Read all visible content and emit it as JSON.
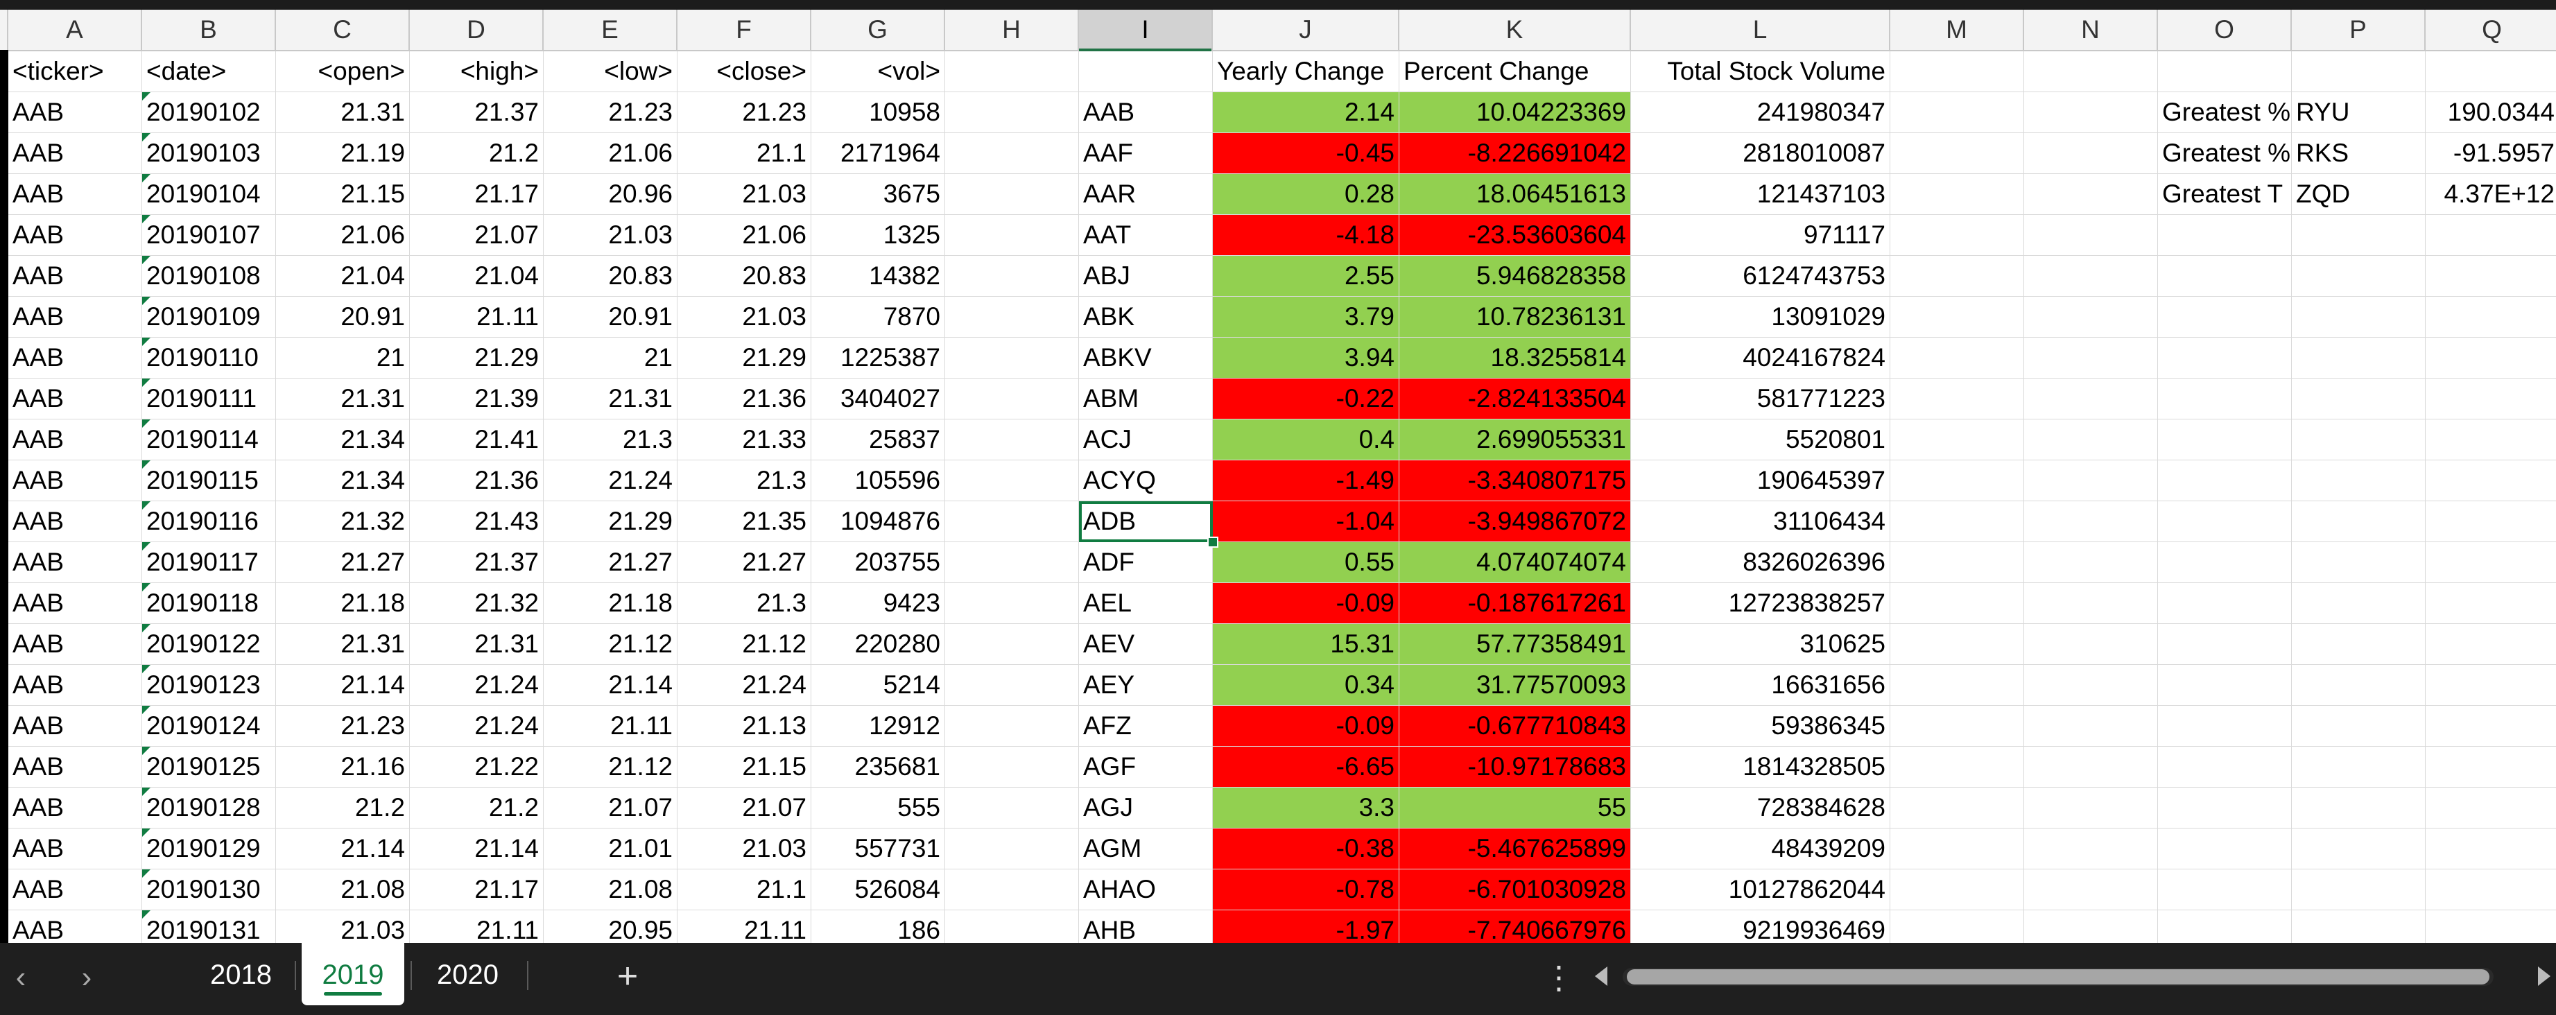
{
  "columns": [
    "A",
    "B",
    "C",
    "D",
    "E",
    "F",
    "G",
    "H",
    "I",
    "J",
    "K",
    "L",
    "M",
    "N",
    "O",
    "P",
    "Q"
  ],
  "selected_column": "I",
  "raw_headers": [
    "<ticker>",
    "<date>",
    "<open>",
    "<high>",
    "<low>",
    "<close>",
    "<vol>"
  ],
  "summary_headers": [
    "Yearly Change",
    "Percent Change",
    "Total Stock Volume"
  ],
  "greatest_labels": [
    "Greatest %",
    "Greatest %",
    "Greatest T"
  ],
  "greatest_tickers": [
    "RYU",
    "RKS",
    "ZQD"
  ],
  "greatest_values": [
    "190.0344",
    "-91.5957",
    "4.37E+12"
  ],
  "raw_rows": [
    [
      "AAB",
      "20190102",
      "21.31",
      "21.37",
      "21.23",
      "21.23",
      "10958"
    ],
    [
      "AAB",
      "20190103",
      "21.19",
      "21.2",
      "21.06",
      "21.1",
      "2171964"
    ],
    [
      "AAB",
      "20190104",
      "21.15",
      "21.17",
      "20.96",
      "21.03",
      "3675"
    ],
    [
      "AAB",
      "20190107",
      "21.06",
      "21.07",
      "21.03",
      "21.06",
      "1325"
    ],
    [
      "AAB",
      "20190108",
      "21.04",
      "21.04",
      "20.83",
      "20.83",
      "14382"
    ],
    [
      "AAB",
      "20190109",
      "20.91",
      "21.11",
      "20.91",
      "21.03",
      "7870"
    ],
    [
      "AAB",
      "20190110",
      "21",
      "21.29",
      "21",
      "21.29",
      "1225387"
    ],
    [
      "AAB",
      "20190111",
      "21.31",
      "21.39",
      "21.31",
      "21.36",
      "3404027"
    ],
    [
      "AAB",
      "20190114",
      "21.34",
      "21.41",
      "21.3",
      "21.33",
      "25837"
    ],
    [
      "AAB",
      "20190115",
      "21.34",
      "21.36",
      "21.24",
      "21.3",
      "105596"
    ],
    [
      "AAB",
      "20190116",
      "21.32",
      "21.43",
      "21.29",
      "21.35",
      "1094876"
    ],
    [
      "AAB",
      "20190117",
      "21.27",
      "21.37",
      "21.27",
      "21.27",
      "203755"
    ],
    [
      "AAB",
      "20190118",
      "21.18",
      "21.32",
      "21.18",
      "21.3",
      "9423"
    ],
    [
      "AAB",
      "20190122",
      "21.31",
      "21.31",
      "21.12",
      "21.12",
      "220280"
    ],
    [
      "AAB",
      "20190123",
      "21.14",
      "21.24",
      "21.14",
      "21.24",
      "5214"
    ],
    [
      "AAB",
      "20190124",
      "21.23",
      "21.24",
      "21.11",
      "21.13",
      "12912"
    ],
    [
      "AAB",
      "20190125",
      "21.16",
      "21.22",
      "21.12",
      "21.15",
      "235681"
    ],
    [
      "AAB",
      "20190128",
      "21.2",
      "21.2",
      "21.07",
      "21.07",
      "555"
    ],
    [
      "AAB",
      "20190129",
      "21.14",
      "21.14",
      "21.01",
      "21.03",
      "557731"
    ],
    [
      "AAB",
      "20190130",
      "21.08",
      "21.17",
      "21.08",
      "21.1",
      "526084"
    ],
    [
      "AAB",
      "20190131",
      "21.03",
      "21.11",
      "20.95",
      "21.11",
      "186"
    ]
  ],
  "summary_rows": [
    [
      "AAB",
      "2.14",
      "10.04223369",
      "241980347"
    ],
    [
      "AAF",
      "-0.45",
      "-8.226691042",
      "2818010087"
    ],
    [
      "AAR",
      "0.28",
      "18.06451613",
      "121437103"
    ],
    [
      "AAT",
      "-4.18",
      "-23.53603604",
      "971117"
    ],
    [
      "ABJ",
      "2.55",
      "5.946828358",
      "6124743753"
    ],
    [
      "ABK",
      "3.79",
      "10.78236131",
      "13091029"
    ],
    [
      "ABKV",
      "3.94",
      "18.3255814",
      "4024167824"
    ],
    [
      "ABM",
      "-0.22",
      "-2.824133504",
      "581771223"
    ],
    [
      "ACJ",
      "0.4",
      "2.699055331",
      "5520801"
    ],
    [
      "ACYQ",
      "-1.49",
      "-3.340807175",
      "190645397"
    ],
    [
      "ADB",
      "-1.04",
      "-3.949867072",
      "31106434"
    ],
    [
      "ADF",
      "0.55",
      "4.074074074",
      "8326026396"
    ],
    [
      "AEL",
      "-0.09",
      "-0.187617261",
      "12723838257"
    ],
    [
      "AEV",
      "15.31",
      "57.77358491",
      "310625"
    ],
    [
      "AEY",
      "0.34",
      "31.77570093",
      "16631656"
    ],
    [
      "AFZ",
      "-0.09",
      "-0.677710843",
      "59386345"
    ],
    [
      "AGF",
      "-6.65",
      "-10.97178683",
      "1814328505"
    ],
    [
      "AGJ",
      "3.3",
      "55",
      "728384628"
    ],
    [
      "AGM",
      "-0.38",
      "-5.467625899",
      "48439209"
    ],
    [
      "AHAO",
      "-0.78",
      "-6.701030928",
      "10127862044"
    ],
    [
      "AHB",
      "-1.97",
      "-7.740667976",
      "9219936469"
    ]
  ],
  "active_cell": "I11",
  "colors": {
    "positive": "#92d050",
    "negative": "#ff0000",
    "accent": "#107c41"
  },
  "tabs": [
    "2018",
    "2019",
    "2020"
  ],
  "active_tab": "2019",
  "icons": {
    "prev": "chevron-left-icon",
    "next": "chevron-right-icon",
    "add": "plus-icon",
    "more": "vertical-ellipsis-icon",
    "scroll_left": "triangle-left-icon",
    "scroll_right": "triangle-right-icon"
  },
  "icon_glyphs": {
    "prev": "‹",
    "next": "›",
    "add": "+",
    "more": "⋮"
  }
}
